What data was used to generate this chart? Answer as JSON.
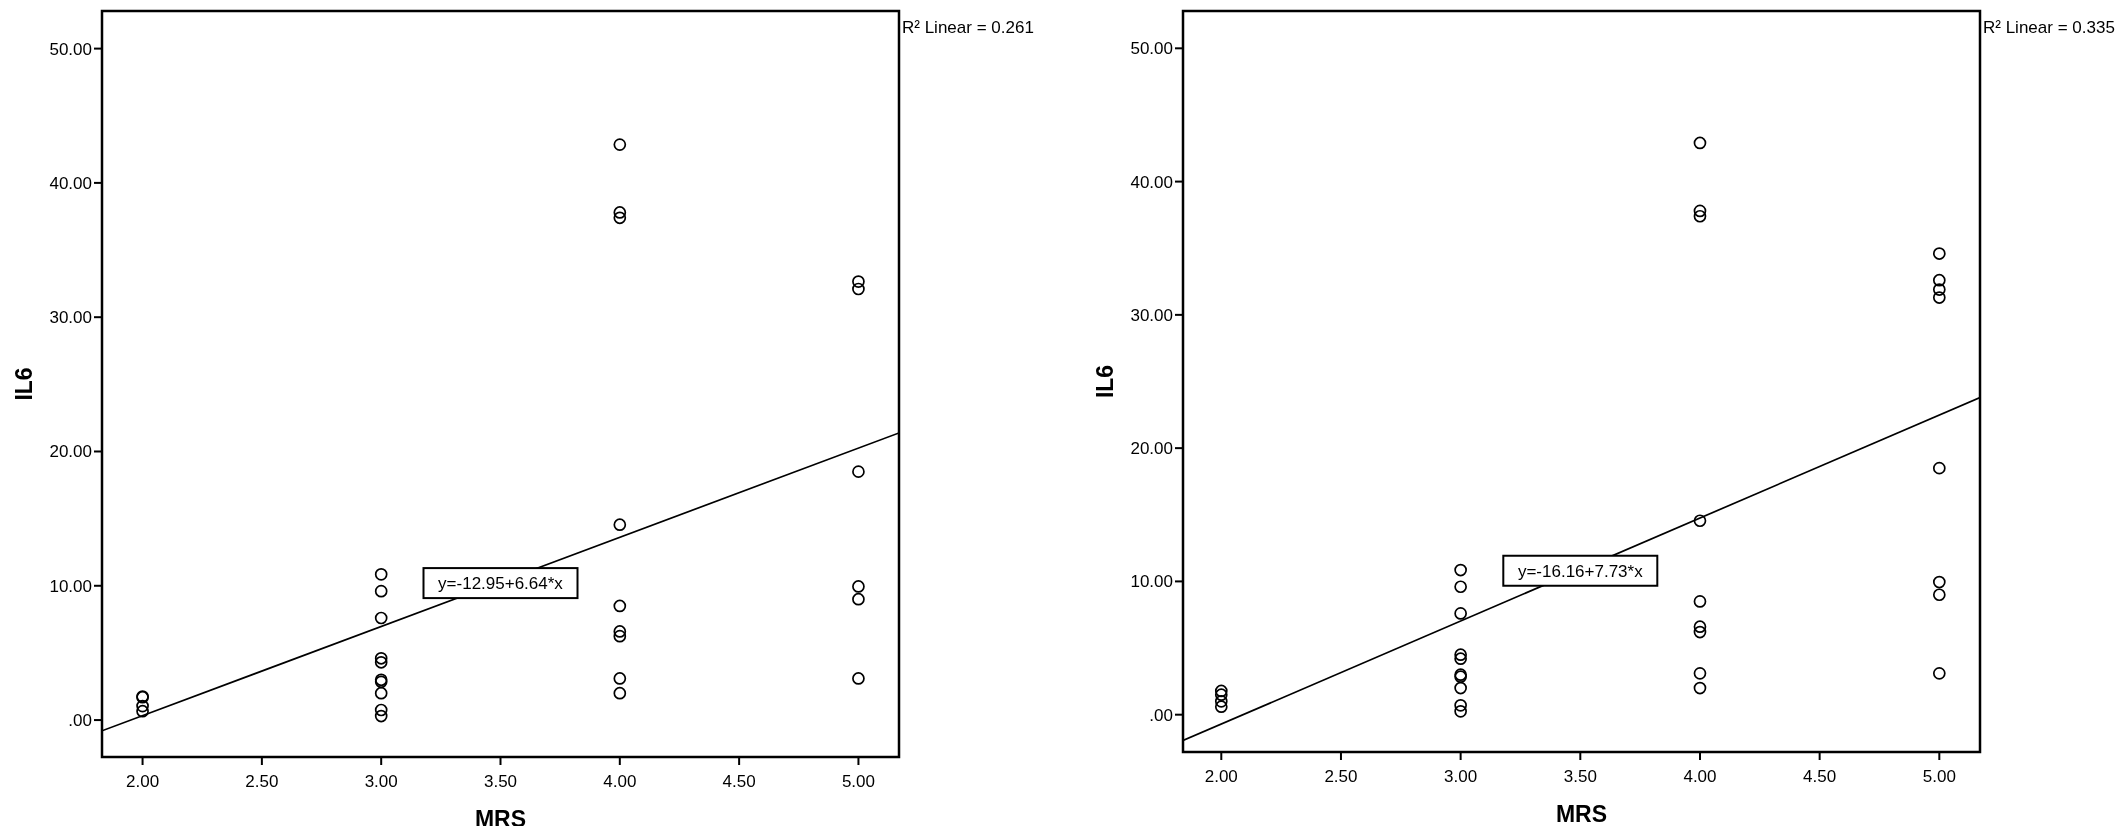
{
  "chart_data": [
    {
      "type": "scatter",
      "xlabel": "MRS",
      "ylabel": "IL6",
      "xlim": [
        1.83,
        5.17
      ],
      "ylim": [
        -2.75,
        52.8
      ],
      "xticks": [
        {
          "value": 2,
          "label": "2.00"
        },
        {
          "value": 2.5,
          "label": "2.50"
        },
        {
          "value": 3,
          "label": "3.00"
        },
        {
          "value": 3.5,
          "label": "3.50"
        },
        {
          "value": 4,
          "label": "4.00"
        },
        {
          "value": 4.5,
          "label": "4.50"
        },
        {
          "value": 5,
          "label": "5.00"
        }
      ],
      "yticks": [
        {
          "value": 0,
          "label": ".00"
        },
        {
          "value": 10,
          "label": "10.00"
        },
        {
          "value": 20,
          "label": "20.00"
        },
        {
          "value": 30,
          "label": "30.00"
        },
        {
          "value": 40,
          "label": "40.00"
        },
        {
          "value": 50,
          "label": "50.00"
        }
      ],
      "series": [
        {
          "marker": "circle",
          "color": "#000000",
          "x": [
            2,
            2,
            2,
            2,
            3,
            3,
            3,
            3,
            3,
            3,
            3,
            3,
            3,
            3,
            4,
            4,
            4,
            4,
            4,
            4,
            4,
            4,
            4,
            5,
            5,
            5,
            5,
            5,
            5
          ],
          "values": [
            1.75,
            1.7,
            1.04,
            0.66,
            10.85,
            9.6,
            7.6,
            4.6,
            4.3,
            3.0,
            2.85,
            2.0,
            0.75,
            0.3,
            42.85,
            37.8,
            37.4,
            14.55,
            8.5,
            6.6,
            6.25,
            3.1,
            2.0,
            32.65,
            32.1,
            18.5,
            9.95,
            9.0,
            3.1
          ]
        },
        {
          "type": "line",
          "color": "#000000",
          "x": [
            1.83,
            5.17
          ],
          "values": [
            -0.8,
            21.38
          ]
        }
      ],
      "annotations": [
        "R² Linear = 0.261",
        {
          "text": "y=-12.95+6.64*x",
          "x": 3.5,
          "y": 10.2
        }
      ]
    },
    {
      "type": "scatter",
      "xlabel": "MRS",
      "ylabel": "IL6",
      "xlim": [
        1.84,
        5.17
      ],
      "ylim": [
        -2.8,
        52.8
      ],
      "xticks": [
        {
          "value": 2,
          "label": "2.00"
        },
        {
          "value": 2.5,
          "label": "2.50"
        },
        {
          "value": 3,
          "label": "3.00"
        },
        {
          "value": 3.5,
          "label": "3.50"
        },
        {
          "value": 4,
          "label": "4.00"
        },
        {
          "value": 4.5,
          "label": "4.50"
        },
        {
          "value": 5,
          "label": "5.00"
        }
      ],
      "yticks": [
        {
          "value": 0,
          "label": ".00"
        },
        {
          "value": 10,
          "label": "10.00"
        },
        {
          "value": 20,
          "label": "20.00"
        },
        {
          "value": 30,
          "label": "30.00"
        },
        {
          "value": 40,
          "label": "40.00"
        },
        {
          "value": 50,
          "label": "50.00"
        }
      ],
      "series": [
        {
          "marker": "circle",
          "color": "#000000",
          "x": [
            2,
            2,
            2,
            2,
            3,
            3,
            3,
            3,
            3,
            3,
            3,
            3,
            3,
            3,
            4,
            4,
            4,
            4,
            4,
            4,
            4,
            4,
            4,
            5,
            5,
            5,
            5,
            5,
            5,
            5,
            5
          ],
          "values": [
            1.78,
            1.5,
            1.0,
            0.6,
            10.85,
            9.6,
            7.6,
            4.5,
            4.2,
            3.0,
            2.85,
            2.0,
            0.7,
            0.25,
            42.9,
            37.8,
            37.4,
            14.55,
            8.5,
            6.6,
            6.2,
            3.1,
            2.0,
            34.6,
            32.6,
            31.9,
            31.3,
            18.5,
            9.95,
            9.0,
            3.1
          ]
        },
        {
          "type": "line",
          "color": "#000000",
          "x": [
            1.84,
            5.17
          ],
          "values": [
            -1.94,
            23.8
          ]
        }
      ],
      "annotations": [
        "R² Linear = 0.335",
        {
          "text": "y=-16.16+7.73*x",
          "x": 3.5,
          "y": 10.8
        }
      ]
    }
  ]
}
